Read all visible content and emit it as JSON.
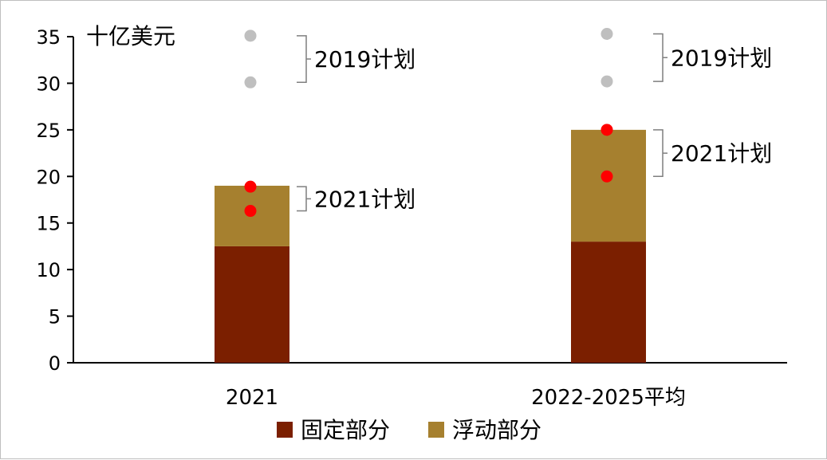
{
  "chart_data": {
    "type": "bar",
    "stacked": true,
    "unit_label": "十亿美元",
    "categories": [
      "2021",
      "2022-2025平均"
    ],
    "series": [
      {
        "name": "固定部分",
        "color": "#7b1f00",
        "values": [
          12.5,
          13.0
        ]
      },
      {
        "name": "浮动部分",
        "color": "#a6802f",
        "values": [
          6.5,
          12.0
        ]
      }
    ],
    "ylim": [
      0,
      35
    ],
    "yticks": [
      0,
      5,
      10,
      15,
      20,
      25,
      30,
      35
    ],
    "grid": false,
    "legend": "bottom",
    "plans": [
      {
        "label": "2019计划",
        "color": "#bfbfbf",
        "points": [
          {
            "category": "2021",
            "values": [
              30.1,
              35.1
            ]
          },
          {
            "category": "2022-2025平均",
            "values": [
              30.2,
              35.3
            ]
          }
        ]
      },
      {
        "label": "2021计划",
        "color": "#ff0000",
        "points": [
          {
            "category": "2021",
            "values": [
              16.3,
              18.9
            ]
          },
          {
            "category": "2022-2025平均",
            "values": [
              20.0,
              25.0
            ]
          }
        ]
      }
    ]
  }
}
